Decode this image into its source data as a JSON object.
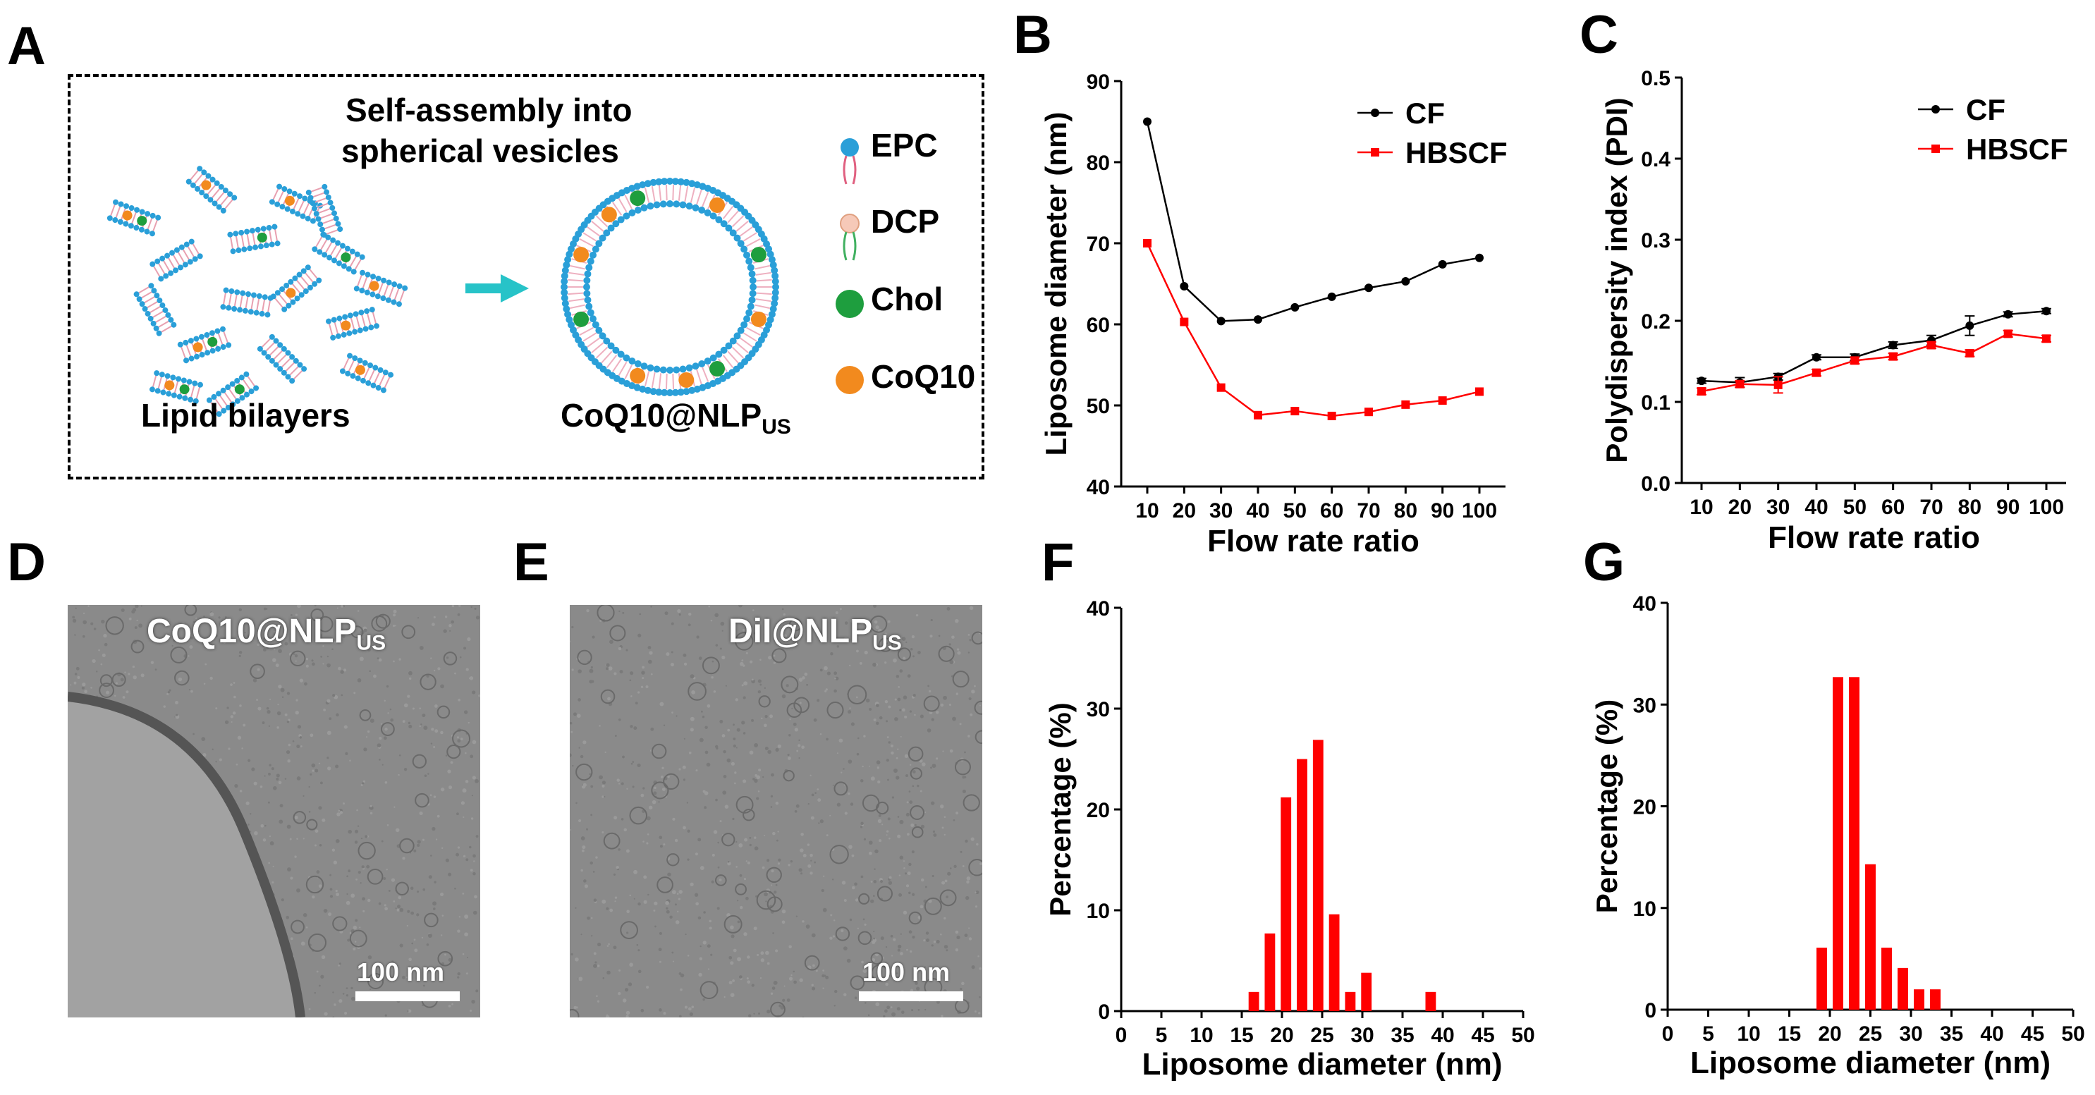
{
  "panel_labels": {
    "A": "A",
    "B": "B",
    "C": "C",
    "D": "D",
    "E": "E",
    "F": "F",
    "G": "G"
  },
  "schematic": {
    "title_line1": "Self-assembly into",
    "title_line2": "spherical vesicles",
    "left_caption": "Lipid bilayers",
    "right_caption_main": "CoQ10@NLP",
    "right_caption_sub": "US",
    "legend": [
      {
        "label": "EPC",
        "color": "#2a9fd8"
      },
      {
        "label": "DCP",
        "color": "#f6c9b8"
      },
      {
        "label": "Chol",
        "color": "#1e9e3e"
      },
      {
        "label": "CoQ10",
        "color": "#f28a1e"
      }
    ],
    "arrow_color": "#27c3c8"
  },
  "tem_images": [
    {
      "label_main": "CoQ10@NLP",
      "label_sub": "US",
      "scale": "100 nm"
    },
    {
      "label_main": "DiI@NLP",
      "label_sub": "US",
      "scale": "100 nm"
    }
  ],
  "chart_data": [
    {
      "panel": "B",
      "type": "line",
      "xlabel": "Flow rate ratio",
      "ylabel": "Liposome diameter (nm)",
      "x": [
        10,
        20,
        30,
        40,
        50,
        60,
        70,
        80,
        90,
        100
      ],
      "ylim": [
        40,
        90
      ],
      "yticks": [
        40,
        50,
        60,
        70,
        80,
        90
      ],
      "legend_position": "top-right",
      "series": [
        {
          "name": "CF",
          "color": "#000000",
          "marker": "circle",
          "values": [
            85.0,
            64.7,
            60.4,
            60.6,
            62.1,
            63.4,
            64.5,
            65.3,
            67.4,
            68.2
          ]
        },
        {
          "name": "HBSCF",
          "color": "#ff0000",
          "marker": "square",
          "values": [
            70.0,
            60.3,
            52.2,
            48.8,
            49.3,
            48.7,
            49.2,
            50.1,
            50.6,
            51.7
          ]
        }
      ]
    },
    {
      "panel": "C",
      "type": "line",
      "xlabel": "Flow rate ratio",
      "ylabel": "Polydispersity index (PDI)",
      "x": [
        10,
        20,
        30,
        40,
        50,
        60,
        70,
        80,
        90,
        100
      ],
      "ylim": [
        0.0,
        0.5
      ],
      "yticks": [
        "0.0",
        "0.1",
        "0.2",
        "0.3",
        "0.4",
        "0.5"
      ],
      "legend_position": "top-right",
      "series": [
        {
          "name": "CF",
          "color": "#000000",
          "marker": "circle",
          "values": [
            0.126,
            0.124,
            0.131,
            0.155,
            0.155,
            0.17,
            0.176,
            0.194,
            0.208,
            0.212
          ],
          "errors": [
            0.003,
            0.006,
            0.004,
            0.003,
            0.004,
            0.004,
            0.006,
            0.012,
            0.003,
            0.003
          ]
        },
        {
          "name": "HBSCF",
          "color": "#ff0000",
          "marker": "square",
          "values": [
            0.113,
            0.122,
            0.121,
            0.136,
            0.151,
            0.156,
            0.17,
            0.16,
            0.184,
            0.178
          ],
          "errors": [
            0.004,
            0.004,
            0.01,
            0.004,
            0.004,
            0.004,
            0.004,
            0.004,
            0.004,
            0.004
          ]
        }
      ]
    },
    {
      "panel": "F",
      "type": "bar",
      "xlabel": "Liposome diameter (nm)",
      "ylabel": "Percentage (%)",
      "xlim": [
        0,
        50
      ],
      "xticks": [
        0,
        5,
        10,
        15,
        20,
        25,
        30,
        35,
        40,
        45,
        50
      ],
      "ylim": [
        0,
        40
      ],
      "yticks": [
        0,
        10,
        20,
        30,
        40
      ],
      "bar_color": "#ff0000",
      "x": [
        16.5,
        18.5,
        20.5,
        22.5,
        24.5,
        26.5,
        28.5,
        30.5,
        32.5,
        34.5,
        36.5,
        38.5
      ],
      "values": [
        1.9,
        7.7,
        21.2,
        25.0,
        26.9,
        9.6,
        1.9,
        3.8,
        0,
        0,
        0,
        1.9
      ]
    },
    {
      "panel": "G",
      "type": "bar",
      "xlabel": "Liposome diameter (nm)",
      "ylabel": "Percentage (%)",
      "xlim": [
        0,
        50
      ],
      "xticks": [
        0,
        5,
        10,
        15,
        20,
        25,
        30,
        35,
        40,
        45,
        50
      ],
      "ylim": [
        0,
        40
      ],
      "yticks": [
        0,
        10,
        20,
        30,
        40
      ],
      "bar_color": "#ff0000",
      "x": [
        19,
        21,
        23,
        25,
        27,
        29,
        31,
        33,
        35
      ],
      "values": [
        6.1,
        32.7,
        32.7,
        14.3,
        6.1,
        4.1,
        2.0,
        2.0,
        0
      ]
    }
  ]
}
